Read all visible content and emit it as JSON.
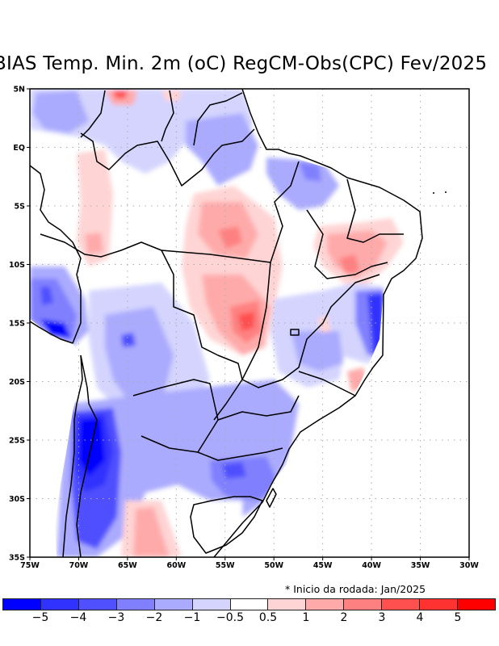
{
  "title": "BIAS Temp. Min. 2m (oC) RegCM-Obs(CPC) Fev/2025",
  "note": "* Inicio da rodada: Jan/2025",
  "map": {
    "region": "Brazil / South America",
    "variable": "Minimum temperature 2m bias (oC)",
    "lon_range": [
      -75,
      -30
    ],
    "lat_range": [
      -35,
      5
    ],
    "lat_ticks": [
      "5N",
      "EQ",
      "5S",
      "10S",
      "15S",
      "20S",
      "25S",
      "30S",
      "35S"
    ],
    "lat_values": [
      5,
      0,
      -5,
      -10,
      -15,
      -20,
      -25,
      -30,
      -35
    ],
    "lon_ticks": [
      "75W",
      "70W",
      "65W",
      "60W",
      "55W",
      "50W",
      "45W",
      "40W",
      "35W",
      "30W"
    ],
    "lon_values": [
      -75,
      -70,
      -65,
      -60,
      -55,
      -50,
      -45,
      -40,
      -35,
      -30
    ],
    "grid": "dotted"
  },
  "colorbar": {
    "colors": [
      "#0000ff",
      "#3232ff",
      "#5050ff",
      "#8080ff",
      "#aaaaff",
      "#d4d4ff",
      "#ffffff",
      "#ffd4d4",
      "#ffaaaa",
      "#ff8080",
      "#ff5050",
      "#ff3232",
      "#ff0000"
    ],
    "labels": [
      "-5",
      "-4",
      "-3",
      "-2",
      "-1",
      "-0.5",
      "0.5",
      "1",
      "2",
      "3",
      "4",
      "5"
    ]
  },
  "regions": [
    {
      "name": "central-warm",
      "level": 2,
      "lon": [
        -58,
        -50
      ],
      "lat": [
        -18,
        -6
      ]
    },
    {
      "name": "northeast-warm",
      "level": 2,
      "lon": [
        -45,
        -37
      ],
      "lat": [
        -12,
        -6
      ]
    },
    {
      "name": "east-coast-cold",
      "level": -5,
      "lon": [
        -41,
        -39
      ],
      "lat": [
        -18,
        -12
      ]
    },
    {
      "name": "andes-cold",
      "level": -5,
      "lon": [
        -72,
        -66
      ],
      "lat": [
        -30,
        -23
      ]
    },
    {
      "name": "peru-cold",
      "level": -4,
      "lon": [
        -75,
        -70
      ],
      "lat": [
        -16,
        -10
      ]
    },
    {
      "name": "south-brazil-cold",
      "level": -3,
      "lon": [
        -56,
        -49
      ],
      "lat": [
        -30,
        -26
      ]
    },
    {
      "name": "pampa-warm",
      "level": 1,
      "lon": [
        -64,
        -60
      ],
      "lat": [
        -35,
        -30
      ]
    }
  ]
}
